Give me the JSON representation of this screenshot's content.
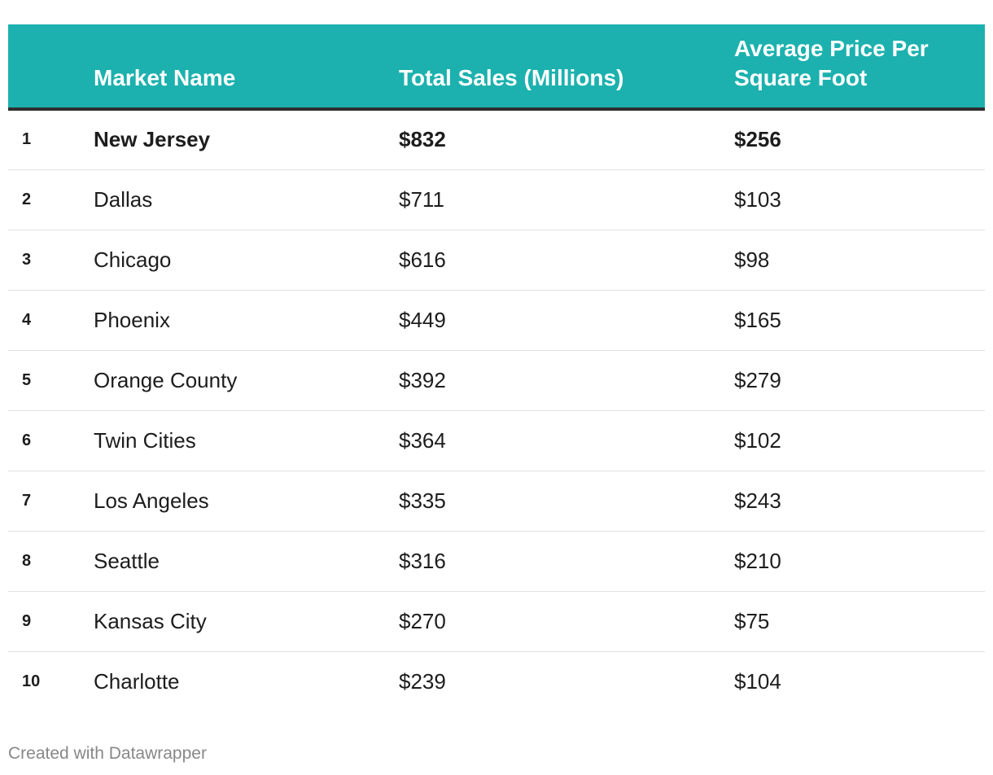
{
  "chart_data": {
    "type": "table",
    "header_color": "#1cb1ae",
    "columns": [
      "",
      "Market Name",
      "Total Sales (Millions)",
      "Average Price Per Square Foot"
    ],
    "rows": [
      {
        "rank": "1",
        "market": "New Jersey",
        "total_sales": "$832",
        "price_per_sqft": "$256",
        "bold": true
      },
      {
        "rank": "2",
        "market": "Dallas",
        "total_sales": "$711",
        "price_per_sqft": "$103",
        "bold": false
      },
      {
        "rank": "3",
        "market": "Chicago",
        "total_sales": "$616",
        "price_per_sqft": "$98",
        "bold": false
      },
      {
        "rank": "4",
        "market": "Phoenix",
        "total_sales": "$449",
        "price_per_sqft": "$165",
        "bold": false
      },
      {
        "rank": "5",
        "market": "Orange County",
        "total_sales": "$392",
        "price_per_sqft": "$279",
        "bold": false
      },
      {
        "rank": "6",
        "market": "Twin Cities",
        "total_sales": "$364",
        "price_per_sqft": "$102",
        "bold": false
      },
      {
        "rank": "7",
        "market": "Los Angeles",
        "total_sales": "$335",
        "price_per_sqft": "$243",
        "bold": false
      },
      {
        "rank": "8",
        "market": "Seattle",
        "total_sales": "$316",
        "price_per_sqft": "$210",
        "bold": false
      },
      {
        "rank": "9",
        "market": "Kansas City",
        "total_sales": "$270",
        "price_per_sqft": "$75",
        "bold": false
      },
      {
        "rank": "10",
        "market": "Charlotte",
        "total_sales": "$239",
        "price_per_sqft": "$104",
        "bold": false
      }
    ]
  },
  "footer": {
    "credit": "Created with Datawrapper"
  }
}
